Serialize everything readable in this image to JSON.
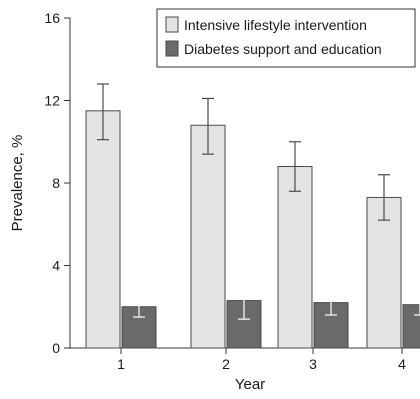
{
  "chart_data": {
    "type": "bar",
    "title": "",
    "xlabel": "Year",
    "ylabel": "Prevalence, %",
    "categories": [
      "1",
      "2",
      "3",
      "4"
    ],
    "ylim": [
      0,
      16
    ],
    "yticks": [
      "0",
      "4",
      "8",
      "12",
      "16"
    ],
    "grid": false,
    "legend_position": "top-right",
    "error_bars": true,
    "series": [
      {
        "name": "Intensive lifestyle intervention",
        "values": [
          11.5,
          10.8,
          8.8,
          7.3
        ],
        "error_low": [
          10.1,
          9.4,
          7.6,
          6.2
        ],
        "error_high": [
          12.8,
          12.1,
          10.0,
          8.4
        ],
        "color": "#e3e3e3"
      },
      {
        "name": "Diabetes support and education",
        "values": [
          2.0,
          2.3,
          2.2,
          2.1
        ],
        "error_low": [
          1.5,
          1.4,
          1.6,
          1.6
        ],
        "error_high": [
          2.6,
          3.2,
          2.9,
          2.7
        ],
        "color": "#6a6a6a"
      }
    ]
  }
}
